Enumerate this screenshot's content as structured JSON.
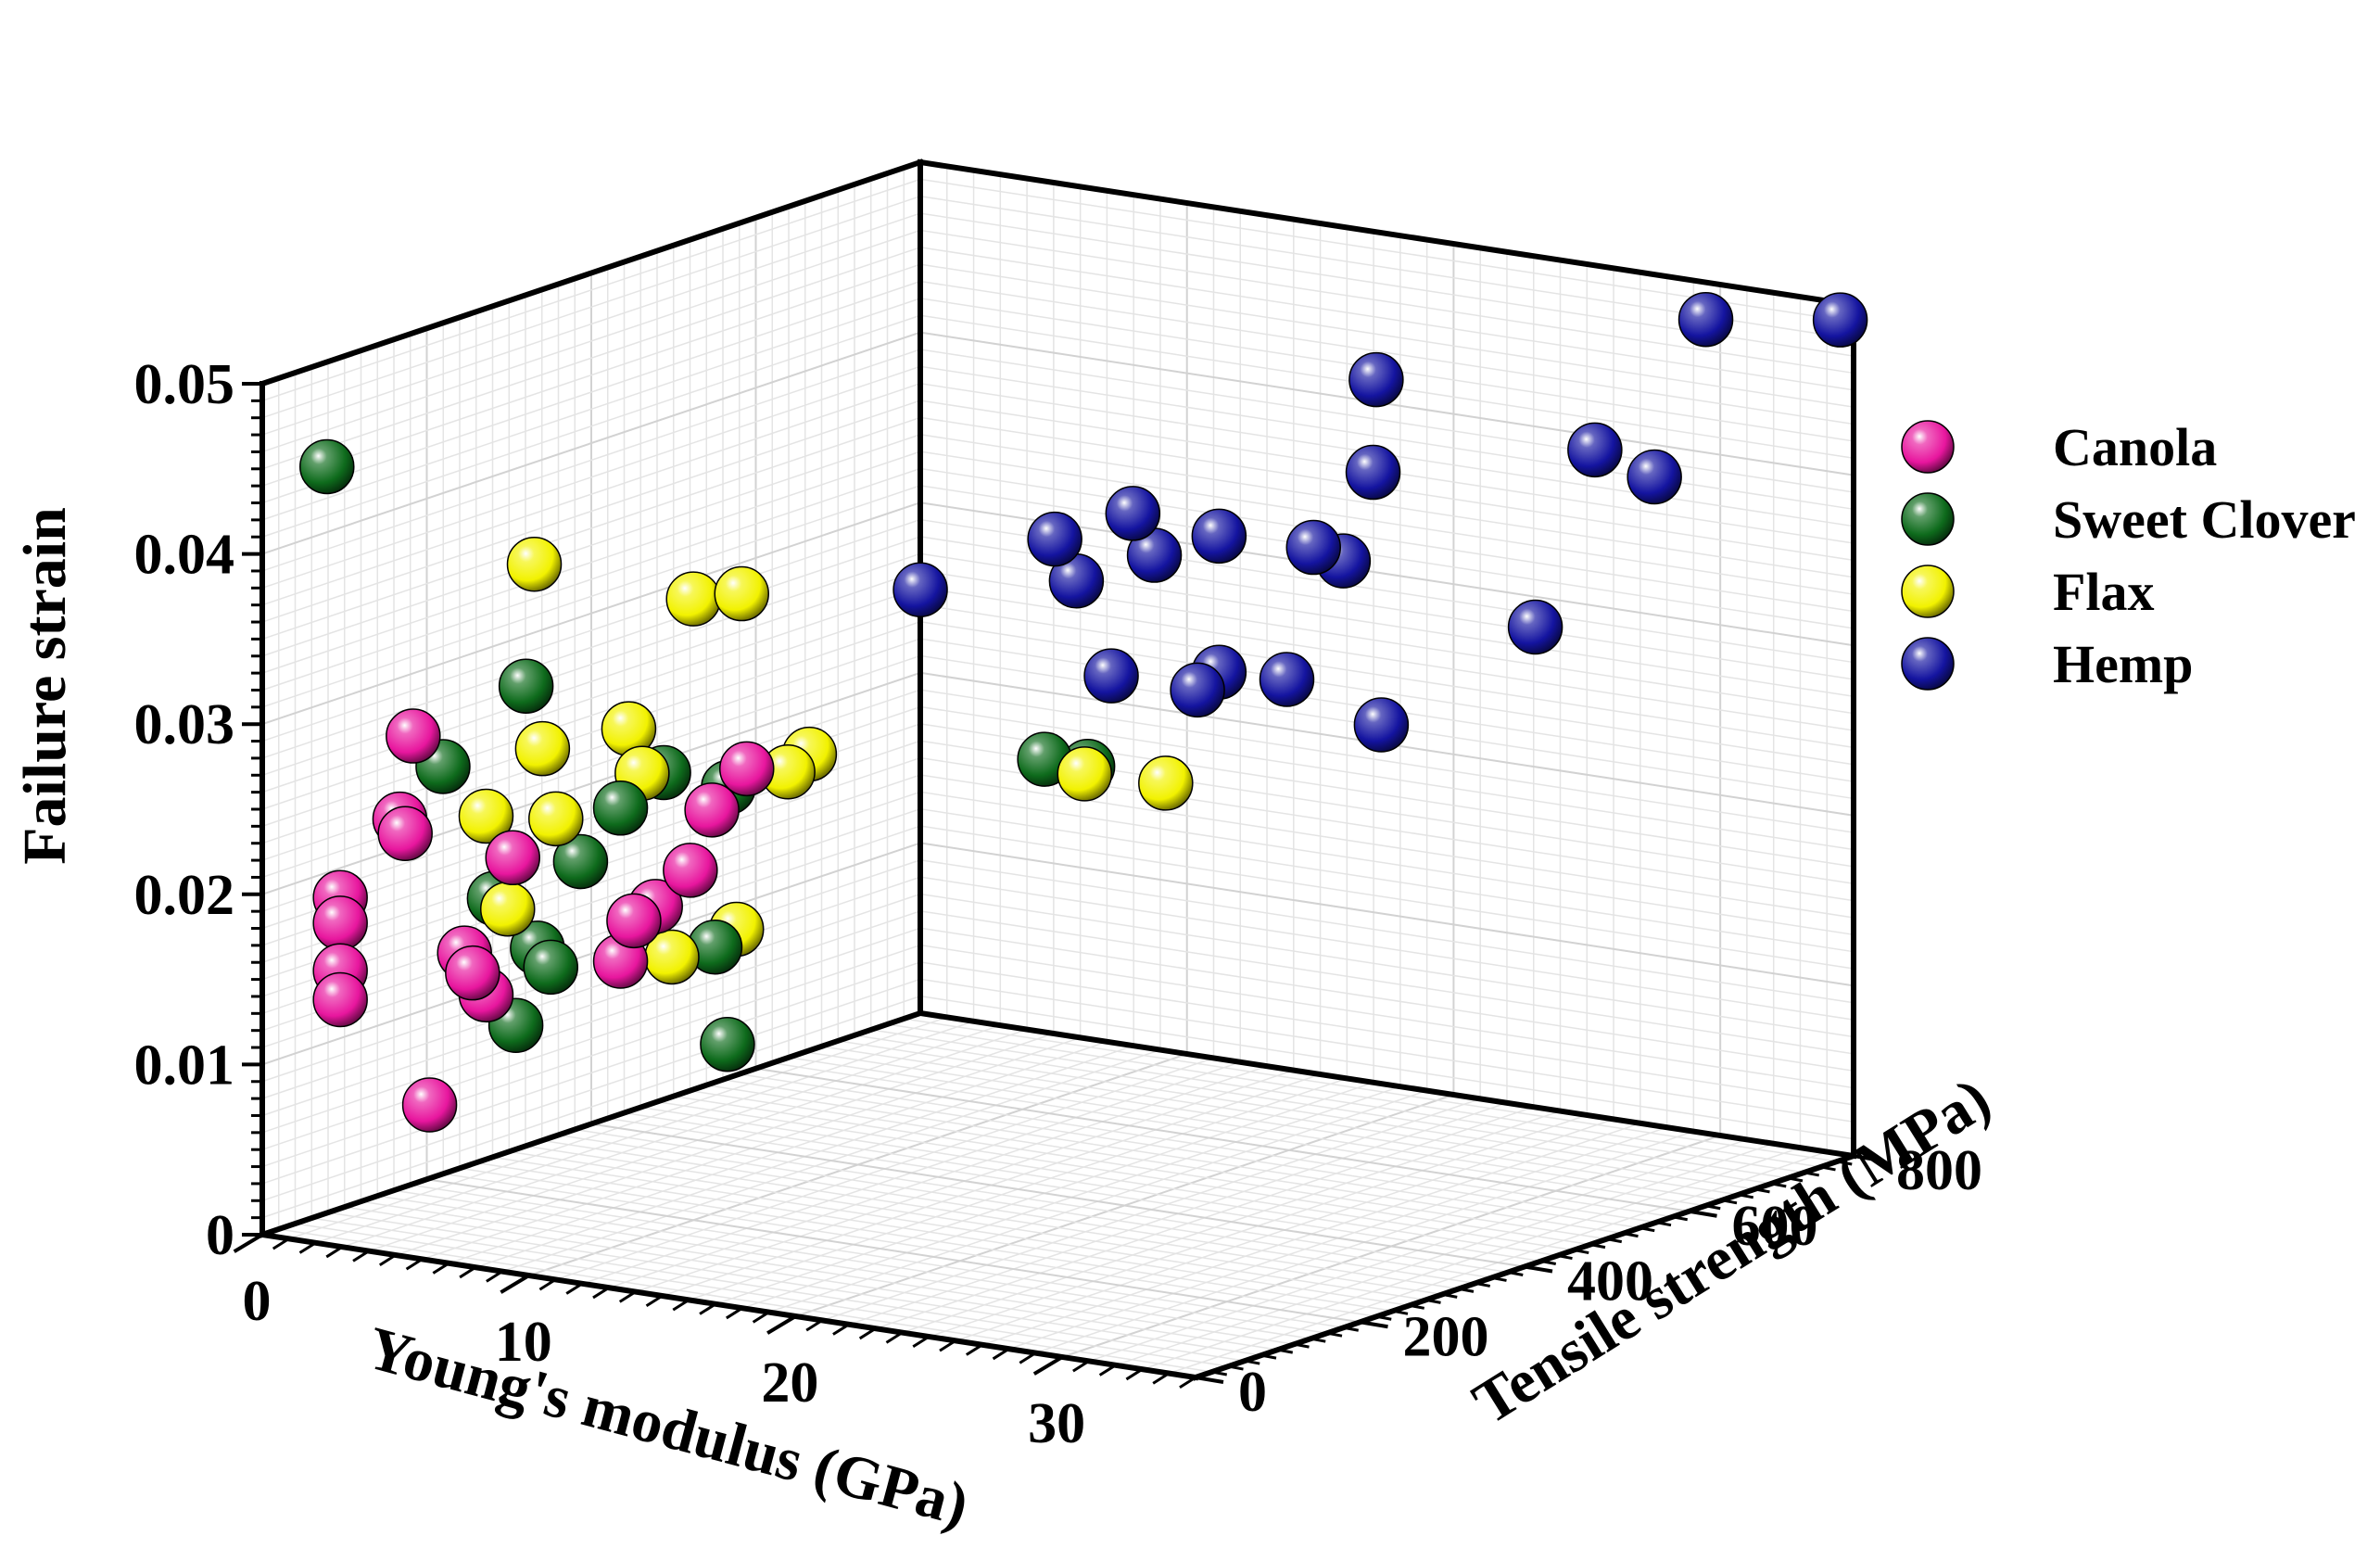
{
  "chart_data": {
    "type": "scatter3d",
    "title": "",
    "xlabel": "Young's modulus (GPa)",
    "ylabel": "Tensile strength (MPa)",
    "zlabel": "Failure strain",
    "xlim": [
      0,
      35
    ],
    "ylim": [
      0,
      800
    ],
    "zlim": [
      0,
      0.05
    ],
    "xticks": [
      "0",
      "10",
      "20",
      "30"
    ],
    "yticks": [
      "0",
      "200",
      "400",
      "600",
      "800"
    ],
    "zticks": [
      "0",
      "0.01",
      "0.02",
      "0.03",
      "0.04",
      "0.05"
    ],
    "grid": true,
    "legend_position": "right",
    "series": [
      {
        "name": "Canola",
        "color": "#e8169e",
        "points": [
          [
            2.0,
            30,
            0.0198
          ],
          [
            2.0,
            30,
            0.0183
          ],
          [
            2.0,
            30,
            0.0155
          ],
          [
            2.0,
            30,
            0.0138
          ],
          [
            3.5,
            70,
            0.029
          ],
          [
            3.0,
            70,
            0.024
          ],
          [
            3.2,
            70,
            0.0232
          ],
          [
            4.5,
            100,
            0.016
          ],
          [
            4.8,
            100,
            0.0149
          ],
          [
            5.0,
            110,
            0.0135
          ],
          [
            6.0,
            110,
            0.0218
          ],
          [
            3.5,
            90,
            0.007
          ],
          [
            8.5,
            160,
            0.0155
          ],
          [
            9.0,
            160,
            0.018
          ],
          [
            9.5,
            170,
            0.0188
          ],
          [
            10.5,
            180,
            0.021
          ],
          [
            11.0,
            190,
            0.0245
          ],
          [
            12.0,
            200,
            0.027
          ]
        ]
      },
      {
        "name": "Sweet Clover",
        "color": "#0e6b1c",
        "points": [
          [
            1.5,
            30,
            0.045
          ],
          [
            4.0,
            90,
            0.027
          ],
          [
            6.5,
            110,
            0.032
          ],
          [
            5.0,
            120,
            0.019
          ],
          [
            6.0,
            140,
            0.016
          ],
          [
            6.5,
            140,
            0.015
          ],
          [
            7.0,
            160,
            0.021
          ],
          [
            8.5,
            160,
            0.0245
          ],
          [
            9.5,
            180,
            0.0265
          ],
          [
            11.0,
            210,
            0.0255
          ],
          [
            10.5,
            210,
            0.016
          ],
          [
            5.5,
            130,
            0.0115
          ],
          [
            8.5,
            290,
            0.0085
          ],
          [
            17.0,
            400,
            0.0255
          ],
          [
            18.0,
            420,
            0.025
          ]
        ]
      },
      {
        "name": "Flax",
        "color": "#f2f200",
        "points": [
          [
            6.5,
            120,
            0.039
          ],
          [
            10.0,
            200,
            0.0365
          ],
          [
            11.5,
            210,
            0.037
          ],
          [
            5.0,
            110,
            0.024
          ],
          [
            5.5,
            120,
            0.0185
          ],
          [
            6.5,
            130,
            0.028
          ],
          [
            7.0,
            130,
            0.024
          ],
          [
            8.5,
            170,
            0.029
          ],
          [
            9.0,
            170,
            0.0265
          ],
          [
            12.5,
            260,
            0.027
          ],
          [
            12.0,
            250,
            0.026
          ],
          [
            11.0,
            220,
            0.017
          ],
          [
            9.5,
            190,
            0.0155
          ],
          [
            18.5,
            400,
            0.025
          ],
          [
            20.0,
            450,
            0.024
          ]
        ]
      },
      {
        "name": "Hemp",
        "color": "#1414a0",
        "points": [
          [
            14.5,
            330,
            0.036
          ],
          [
            18.0,
            380,
            0.039
          ],
          [
            18.5,
            390,
            0.0365
          ],
          [
            19.5,
            400,
            0.031
          ],
          [
            20.0,
            410,
            0.0405
          ],
          [
            20.5,
            420,
            0.038
          ],
          [
            21.5,
            440,
            0.03
          ],
          [
            22.0,
            450,
            0.039
          ],
          [
            22.0,
            450,
            0.031
          ],
          [
            23.0,
            500,
            0.03
          ],
          [
            24.0,
            500,
            0.038
          ],
          [
            24.5,
            520,
            0.037
          ],
          [
            25.0,
            540,
            0.042
          ],
          [
            24.5,
            560,
            0.047
          ],
          [
            25.0,
            550,
            0.027
          ],
          [
            28.0,
            640,
            0.032
          ],
          [
            29.0,
            680,
            0.042
          ],
          [
            30.0,
            720,
            0.04
          ],
          [
            31.0,
            750,
            0.049
          ],
          [
            34.5,
            800,
            0.049
          ]
        ]
      }
    ]
  }
}
